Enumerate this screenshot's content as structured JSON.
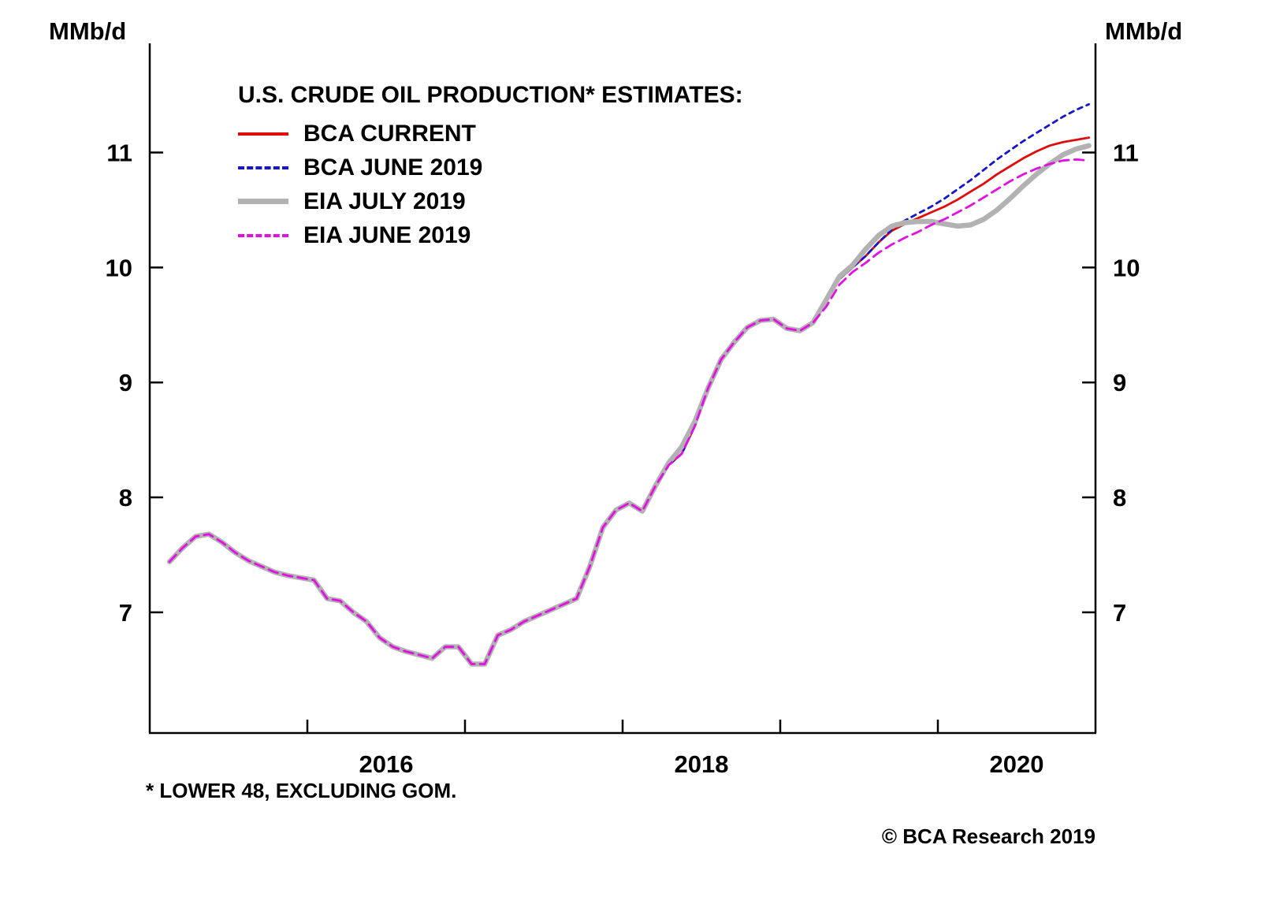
{
  "chart_data": {
    "type": "line",
    "title": "U.S. CRUDE OIL PRODUCTION* ESTIMATES:",
    "unit_label": "MMb/d",
    "xlim": [
      2015,
      2021
    ],
    "ylim": [
      5.95,
      11.95
    ],
    "y_ticks": [
      7,
      8,
      9,
      10,
      11
    ],
    "x_ticks": [
      2016,
      2017,
      2018,
      2019,
      2020
    ],
    "x_tick_labels": [
      {
        "pos": 2016.5,
        "label": "2016"
      },
      {
        "pos": 2018.5,
        "label": "2018"
      },
      {
        "pos": 2020.5,
        "label": "2020"
      }
    ],
    "grid": false,
    "legend_position": "top-left-inside",
    "x": [
      2015.125,
      2015.208,
      2015.292,
      2015.375,
      2015.458,
      2015.542,
      2015.625,
      2015.708,
      2015.792,
      2015.875,
      2015.958,
      2016.042,
      2016.125,
      2016.208,
      2016.292,
      2016.375,
      2016.458,
      2016.542,
      2016.625,
      2016.708,
      2016.792,
      2016.875,
      2016.958,
      2017.042,
      2017.125,
      2017.208,
      2017.292,
      2017.375,
      2017.458,
      2017.542,
      2017.625,
      2017.708,
      2017.792,
      2017.875,
      2017.958,
      2018.042,
      2018.125,
      2018.208,
      2018.292,
      2018.375,
      2018.458,
      2018.542,
      2018.625,
      2018.708,
      2018.792,
      2018.875,
      2018.958,
      2019.042,
      2019.125,
      2019.208,
      2019.292,
      2019.375,
      2019.458,
      2019.542,
      2019.625,
      2019.708,
      2019.792,
      2019.875,
      2019.958,
      2020.042,
      2020.125,
      2020.208,
      2020.292,
      2020.375,
      2020.458,
      2020.542,
      2020.625,
      2020.708,
      2020.792,
      2020.875,
      2020.958
    ],
    "series": [
      {
        "name": "BCA CURRENT",
        "color": "#e00c0c",
        "style": "solid",
        "width": 2.8,
        "dash": null,
        "values": [
          7.44,
          7.56,
          7.66,
          7.68,
          7.61,
          7.52,
          7.45,
          7.4,
          7.35,
          7.32,
          7.3,
          7.28,
          7.12,
          7.1,
          7.0,
          6.92,
          6.78,
          6.7,
          6.66,
          6.63,
          6.6,
          6.7,
          6.7,
          6.55,
          6.55,
          6.8,
          6.85,
          6.92,
          6.97,
          7.02,
          7.07,
          7.12,
          7.4,
          7.74,
          7.89,
          7.95,
          7.88,
          8.1,
          8.28,
          8.38,
          8.62,
          8.95,
          9.2,
          9.35,
          9.48,
          9.54,
          9.55,
          9.47,
          9.45,
          9.52,
          9.7,
          9.9,
          10.0,
          10.1,
          10.22,
          10.32,
          10.38,
          10.43,
          10.48,
          10.53,
          10.59,
          10.66,
          10.73,
          10.81,
          10.88,
          10.95,
          11.01,
          11.06,
          11.09,
          11.11,
          11.13
        ]
      },
      {
        "name": "BCA JUNE 2019",
        "color": "#1515cf",
        "style": "dashed",
        "width": 2.8,
        "dash": "6 6",
        "values": [
          7.44,
          7.56,
          7.66,
          7.68,
          7.61,
          7.52,
          7.45,
          7.4,
          7.35,
          7.32,
          7.3,
          7.28,
          7.12,
          7.1,
          7.0,
          6.92,
          6.78,
          6.7,
          6.66,
          6.63,
          6.6,
          6.7,
          6.7,
          6.55,
          6.55,
          6.8,
          6.85,
          6.92,
          6.97,
          7.02,
          7.07,
          7.12,
          7.4,
          7.74,
          7.89,
          7.95,
          7.88,
          8.1,
          8.28,
          8.38,
          8.62,
          8.95,
          9.2,
          9.35,
          9.48,
          9.54,
          9.55,
          9.47,
          9.45,
          9.52,
          9.7,
          9.9,
          10.0,
          10.1,
          10.22,
          10.33,
          10.41,
          10.47,
          10.53,
          10.6,
          10.68,
          10.76,
          10.85,
          10.94,
          11.02,
          11.1,
          11.17,
          11.24,
          11.31,
          11.37,
          11.42
        ]
      },
      {
        "name": "EIA JULY 2019",
        "color": "#b2b2b2",
        "style": "solid",
        "width": 6.5,
        "dash": null,
        "values": [
          7.44,
          7.56,
          7.66,
          7.68,
          7.61,
          7.52,
          7.45,
          7.4,
          7.35,
          7.32,
          7.3,
          7.28,
          7.12,
          7.1,
          7.0,
          6.92,
          6.78,
          6.7,
          6.66,
          6.63,
          6.6,
          6.7,
          6.7,
          6.55,
          6.55,
          6.8,
          6.85,
          6.92,
          6.97,
          7.02,
          7.07,
          7.12,
          7.4,
          7.74,
          7.89,
          7.95,
          7.88,
          8.1,
          8.3,
          8.44,
          8.66,
          8.95,
          9.2,
          9.35,
          9.48,
          9.54,
          9.55,
          9.47,
          9.45,
          9.52,
          9.72,
          9.92,
          10.02,
          10.16,
          10.28,
          10.36,
          10.39,
          10.4,
          10.4,
          10.38,
          10.36,
          10.37,
          10.42,
          10.5,
          10.6,
          10.71,
          10.81,
          10.9,
          10.98,
          11.03,
          11.06
        ]
      },
      {
        "name": "EIA JUNE 2019",
        "color": "#e210e2",
        "style": "dashed",
        "width": 2.8,
        "dash": "12 7",
        "values": [
          7.44,
          7.56,
          7.66,
          7.68,
          7.61,
          7.52,
          7.45,
          7.4,
          7.35,
          7.32,
          7.3,
          7.28,
          7.12,
          7.1,
          7.0,
          6.92,
          6.78,
          6.7,
          6.66,
          6.63,
          6.6,
          6.7,
          6.7,
          6.55,
          6.55,
          6.8,
          6.85,
          6.92,
          6.97,
          7.02,
          7.07,
          7.12,
          7.4,
          7.74,
          7.89,
          7.95,
          7.88,
          8.1,
          8.28,
          8.38,
          8.62,
          8.95,
          9.2,
          9.35,
          9.48,
          9.54,
          9.55,
          9.47,
          9.45,
          9.52,
          9.66,
          9.85,
          9.96,
          10.04,
          10.13,
          10.2,
          10.26,
          10.31,
          10.37,
          10.42,
          10.48,
          10.54,
          10.61,
          10.68,
          10.75,
          10.81,
          10.86,
          10.9,
          10.93,
          10.94,
          10.93
        ]
      }
    ]
  },
  "footnote": "* LOWER 48, EXCLUDING GOM.",
  "copyright": "© BCA Research 2019"
}
